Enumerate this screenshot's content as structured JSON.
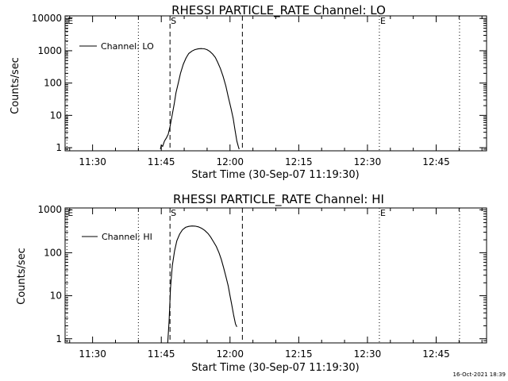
{
  "chart_data": [
    {
      "type": "line",
      "title": "RHESSI PARTICLE_RATE Channel: LO",
      "xlabel": "Start Time (30-Sep-07 11:19:30)",
      "ylabel": "Counts/sec",
      "y_scale": "log",
      "ylim": [
        0.8,
        12000
      ],
      "xlim_minutes_of_day": [
        684.0,
        776.0
      ],
      "x_ticks": [
        {
          "label": "11:30",
          "minute": 690
        },
        {
          "label": "11:45",
          "minute": 705
        },
        {
          "label": "12:00",
          "minute": 720
        },
        {
          "label": "12:15",
          "minute": 735
        },
        {
          "label": "12:30",
          "minute": 750
        },
        {
          "label": "12:45",
          "minute": 765
        }
      ],
      "y_ticks": [
        {
          "label": "1",
          "value": 1
        },
        {
          "label": "10",
          "value": 10
        },
        {
          "label": "100",
          "value": 100
        },
        {
          "label": "1000",
          "value": 1000
        },
        {
          "label": "10000",
          "value": 10000
        }
      ],
      "legend": {
        "placement": "top-left",
        "entries": [
          "Channel: LO"
        ]
      },
      "series": [
        {
          "name": "Channel: LO",
          "x_minute": [
            704.8,
            705.0,
            705.3,
            705.7,
            706.1,
            706.5,
            706.9,
            707.3,
            707.8,
            708.2,
            708.7,
            709.2,
            709.8,
            710.4,
            711.0,
            711.7,
            712.3,
            713.0,
            713.7,
            714.4,
            715.0,
            715.6,
            716.2,
            716.8,
            717.3,
            717.9,
            718.5,
            719.1,
            719.6,
            720.2,
            720.7,
            721.1,
            721.5,
            721.8,
            722.0
          ],
          "y": [
            0.9,
            1.2,
            1.1,
            1.6,
            2.0,
            2.6,
            4.5,
            9,
            22,
            50,
            100,
            200,
            380,
            600,
            820,
            980,
            1080,
            1140,
            1170,
            1150,
            1080,
            950,
            790,
            620,
            440,
            280,
            160,
            80,
            38,
            17,
            8,
            3.5,
            1.6,
            1.1,
            0.9
          ]
        }
      ],
      "markers": [
        {
          "label": "E",
          "minute": 684.4,
          "style": "dotted"
        },
        {
          "label": "",
          "minute": 700.0,
          "style": "dotted"
        },
        {
          "label": "S",
          "minute": 706.9,
          "style": "dashed"
        },
        {
          "label": "",
          "minute": 722.7,
          "style": "dashed"
        },
        {
          "label": "E",
          "minute": 752.6,
          "style": "dotted"
        },
        {
          "label": "",
          "minute": 770.1,
          "style": "dotted"
        }
      ]
    },
    {
      "type": "line",
      "title": "RHESSI PARTICLE_RATE Channel: HI",
      "xlabel": "Start Time (30-Sep-07 11:19:30)",
      "ylabel": "Counts/sec",
      "y_scale": "log",
      "ylim": [
        0.8,
        1100
      ],
      "xlim_minutes_of_day": [
        684.0,
        776.0
      ],
      "x_ticks": [
        {
          "label": "11:30",
          "minute": 690
        },
        {
          "label": "11:45",
          "minute": 705
        },
        {
          "label": "12:00",
          "minute": 720
        },
        {
          "label": "12:15",
          "minute": 735
        },
        {
          "label": "12:30",
          "minute": 750
        },
        {
          "label": "12:45",
          "minute": 765
        }
      ],
      "y_ticks": [
        {
          "label": "1",
          "value": 1
        },
        {
          "label": "10",
          "value": 10
        },
        {
          "label": "100",
          "value": 100
        },
        {
          "label": "1000",
          "value": 1000
        }
      ],
      "legend": {
        "placement": "top-left",
        "entries": [
          "Channel: HI"
        ]
      },
      "series": [
        {
          "name": "Channel: HI",
          "x_minute": [
            706.4,
            706.7,
            707.0,
            707.4,
            707.9,
            708.4,
            709.0,
            709.6,
            710.3,
            711.0,
            711.7,
            712.4,
            713.1,
            713.8,
            714.5,
            715.2,
            715.8,
            716.4,
            717.0,
            717.6,
            718.1,
            718.6,
            719.1,
            719.6,
            720.0,
            720.4,
            720.8,
            721.2,
            721.5
          ],
          "y": [
            0.8,
            2.5,
            15,
            50,
            110,
            190,
            270,
            340,
            390,
            410,
            420,
            415,
            400,
            370,
            330,
            280,
            230,
            180,
            140,
            100,
            70,
            45,
            28,
            17,
            10,
            6,
            3.5,
            2.2,
            1.9
          ]
        }
      ],
      "markers": [
        {
          "label": "E",
          "minute": 684.4,
          "style": "dotted"
        },
        {
          "label": "",
          "minute": 700.0,
          "style": "dotted"
        },
        {
          "label": "S",
          "minute": 706.9,
          "style": "dashed"
        },
        {
          "label": "",
          "minute": 722.7,
          "style": "dashed"
        },
        {
          "label": "E",
          "minute": 752.6,
          "style": "dotted"
        },
        {
          "label": "",
          "minute": 770.1,
          "style": "dotted"
        }
      ]
    }
  ],
  "footer": {
    "timestamp": "16-Oct-2021 18:39"
  }
}
